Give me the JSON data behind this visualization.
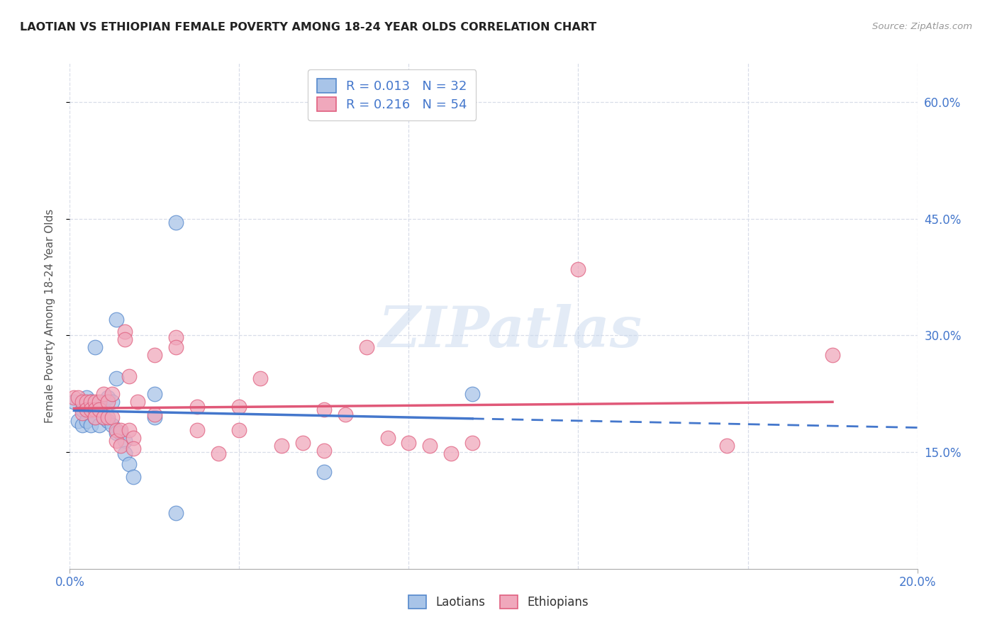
{
  "title": "LAOTIAN VS ETHIOPIAN FEMALE POVERTY AMONG 18-24 YEAR OLDS CORRELATION CHART",
  "source": "Source: ZipAtlas.com",
  "ylabel": "Female Poverty Among 18-24 Year Olds",
  "xlim": [
    0.0,
    0.2
  ],
  "ylim": [
    0.0,
    0.65
  ],
  "xtick_pos": [
    0.0,
    0.2
  ],
  "xtick_labels": [
    "0.0%",
    "20.0%"
  ],
  "ytick_vals": [
    0.15,
    0.3,
    0.45,
    0.6
  ],
  "ytick_labels": [
    "15.0%",
    "30.0%",
    "45.0%",
    "60.0%"
  ],
  "grid_yticks": [
    0.15,
    0.3,
    0.45,
    0.6
  ],
  "grid_xticks": [
    0.0,
    0.04,
    0.08,
    0.12,
    0.16,
    0.2
  ],
  "background_color": "#ffffff",
  "grid_color": "#d8dde8",
  "laotian_color": "#a8c4e8",
  "ethiopian_color": "#f0a8bc",
  "laotian_edge_color": "#5588cc",
  "ethiopian_edge_color": "#e06080",
  "laotian_line_color": "#4477cc",
  "ethiopian_line_color": "#e05878",
  "watermark_text": "ZIPatlas",
  "laotian_x": [
    0.001,
    0.002,
    0.003,
    0.003,
    0.004,
    0.004,
    0.005,
    0.005,
    0.006,
    0.006,
    0.007,
    0.007,
    0.008,
    0.008,
    0.009,
    0.009,
    0.01,
    0.01,
    0.011,
    0.011,
    0.011,
    0.012,
    0.013,
    0.013,
    0.014,
    0.015,
    0.02,
    0.02,
    0.025,
    0.025,
    0.06,
    0.095
  ],
  "laotian_y": [
    0.215,
    0.19,
    0.205,
    0.185,
    0.22,
    0.19,
    0.215,
    0.185,
    0.285,
    0.195,
    0.205,
    0.185,
    0.215,
    0.195,
    0.22,
    0.19,
    0.215,
    0.185,
    0.32,
    0.245,
    0.175,
    0.175,
    0.165,
    0.148,
    0.135,
    0.118,
    0.225,
    0.195,
    0.445,
    0.072,
    0.125,
    0.225
  ],
  "ethiopian_x": [
    0.001,
    0.002,
    0.003,
    0.003,
    0.004,
    0.004,
    0.005,
    0.005,
    0.006,
    0.006,
    0.006,
    0.007,
    0.007,
    0.008,
    0.008,
    0.009,
    0.009,
    0.01,
    0.01,
    0.011,
    0.011,
    0.012,
    0.012,
    0.013,
    0.013,
    0.014,
    0.014,
    0.015,
    0.015,
    0.016,
    0.02,
    0.02,
    0.025,
    0.025,
    0.03,
    0.03,
    0.035,
    0.04,
    0.04,
    0.045,
    0.05,
    0.055,
    0.06,
    0.06,
    0.065,
    0.07,
    0.075,
    0.08,
    0.085,
    0.09,
    0.095,
    0.12,
    0.155,
    0.18
  ],
  "ethiopian_y": [
    0.22,
    0.22,
    0.215,
    0.2,
    0.215,
    0.205,
    0.215,
    0.205,
    0.215,
    0.205,
    0.195,
    0.215,
    0.205,
    0.225,
    0.195,
    0.215,
    0.195,
    0.225,
    0.195,
    0.178,
    0.165,
    0.178,
    0.158,
    0.305,
    0.295,
    0.248,
    0.178,
    0.168,
    0.155,
    0.215,
    0.275,
    0.198,
    0.298,
    0.285,
    0.208,
    0.178,
    0.148,
    0.208,
    0.178,
    0.245,
    0.158,
    0.162,
    0.205,
    0.152,
    0.198,
    0.285,
    0.168,
    0.162,
    0.158,
    0.148,
    0.162,
    0.385,
    0.158,
    0.275
  ]
}
